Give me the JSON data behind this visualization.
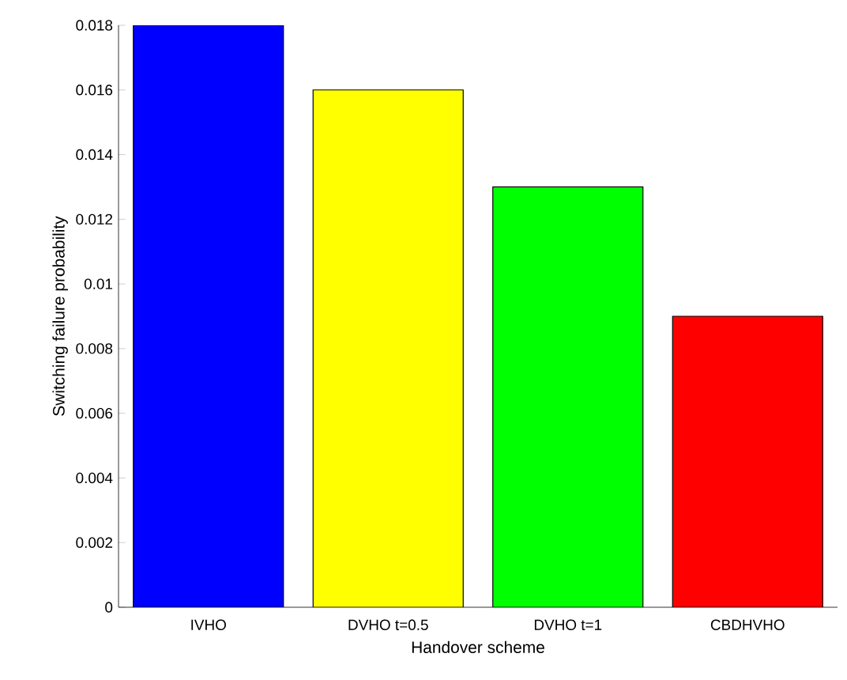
{
  "chart_data": {
    "type": "bar",
    "xlabel": "Handover scheme",
    "ylabel": "Switching failure probability",
    "categories": [
      "IVHO",
      "DVHO t=0.5",
      "DVHO t=1",
      "CBDHVHO"
    ],
    "values": [
      0.018,
      0.016,
      0.013,
      0.009
    ],
    "colors": [
      "#0000ff",
      "#ffff00",
      "#00ff00",
      "#ff0000"
    ],
    "ylim": [
      0,
      0.018
    ],
    "yticks": [
      0,
      0.002,
      0.004,
      0.006,
      0.008,
      0.01,
      0.012,
      0.014,
      0.016,
      0.018
    ]
  }
}
